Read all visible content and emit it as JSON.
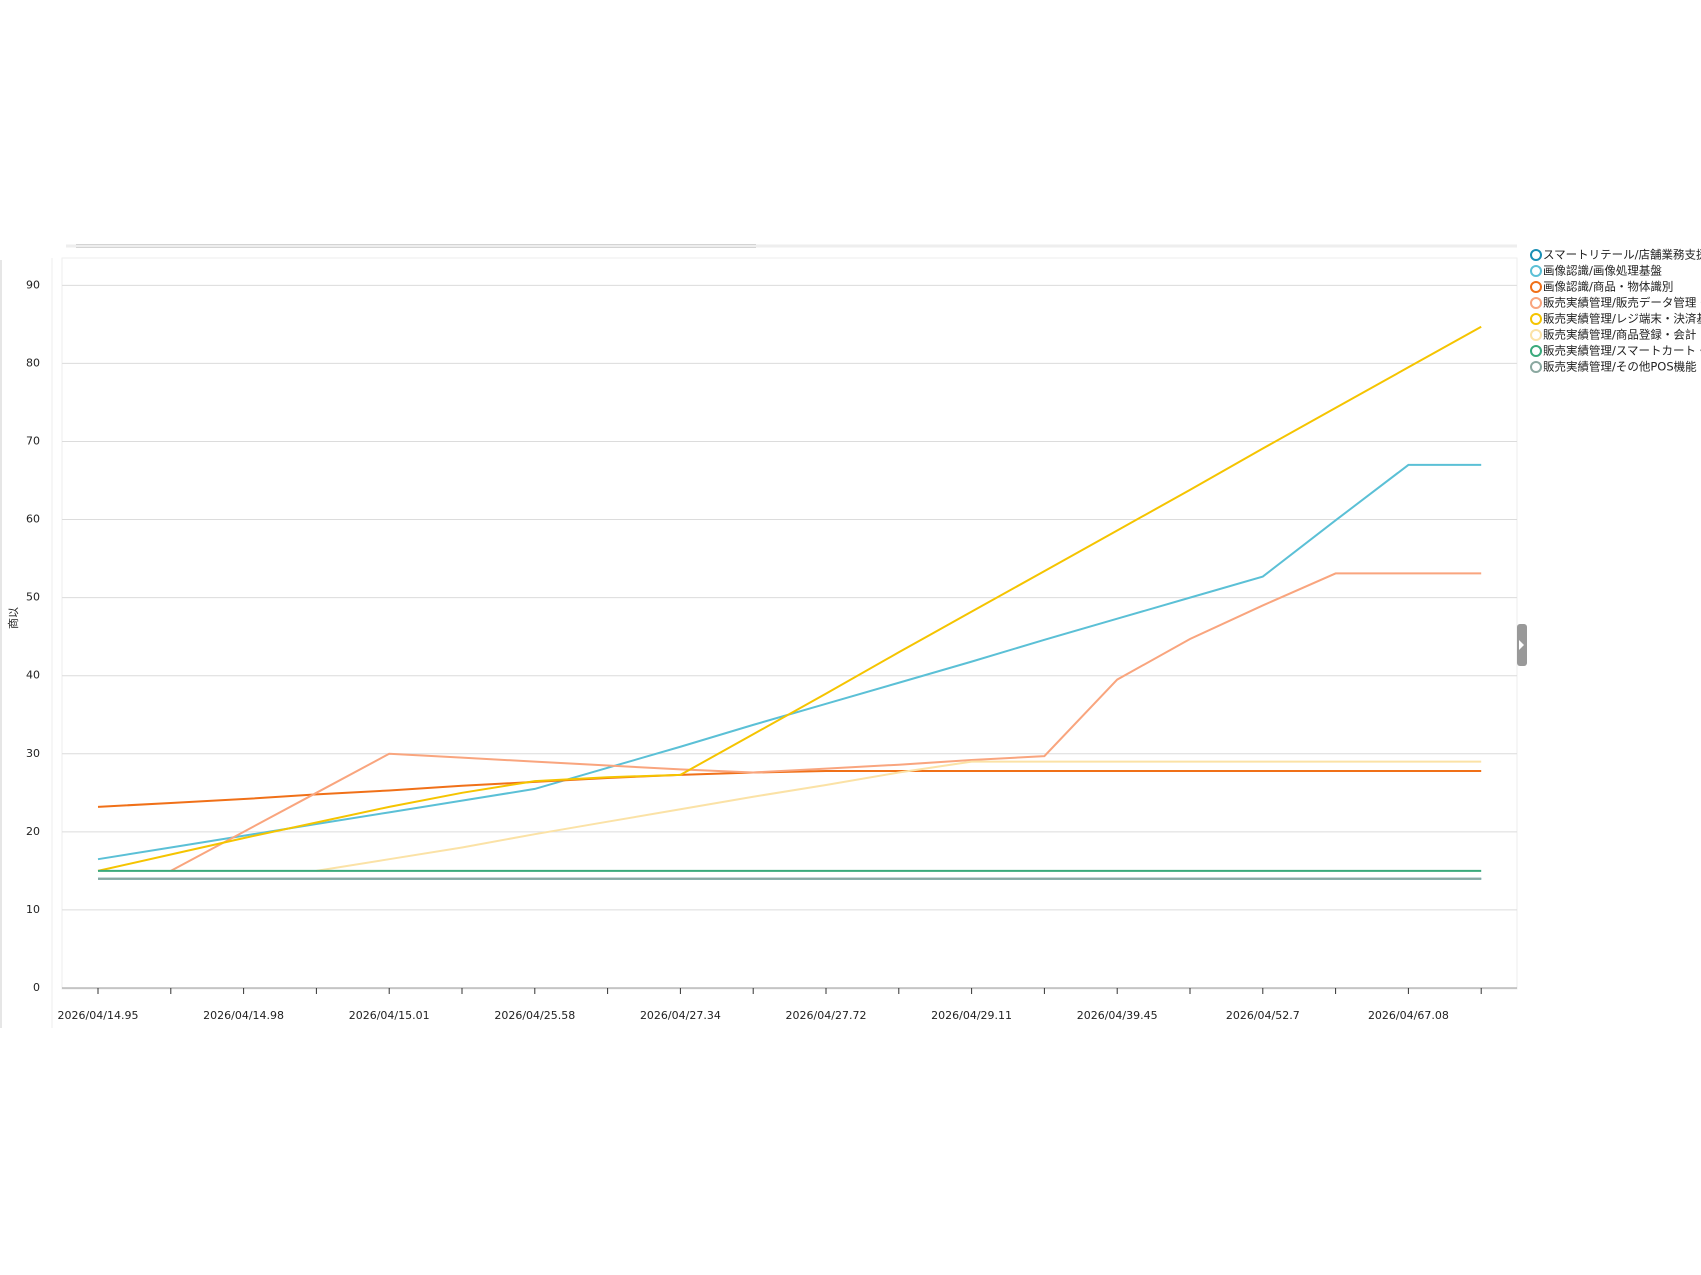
{
  "chart_data": {
    "type": "line",
    "y_label": "商以",
    "categories": [
      "2026/04/14.95",
      null,
      "2026/04/14.98",
      null,
      "2026/04/15.01",
      null,
      "2026/04/25.58",
      null,
      "2026/04/27.34",
      null,
      "2026/04/27.72",
      null,
      "2026/04/29.11",
      null,
      "2026/04/39.45",
      null,
      "2026/04/52.7",
      null,
      "2026/04/67.08",
      null
    ],
    "ylim": [
      0,
      93.5
    ],
    "yticks": [
      0,
      10,
      20,
      30,
      40,
      50,
      60,
      70,
      80,
      90
    ],
    "grid": true,
    "series": [
      {
        "name": "スマートリテール/店舗業務支援",
        "color": "#1a8fb5",
        "values": [
          14,
          14,
          14,
          14,
          14,
          14,
          14,
          14,
          14,
          14,
          14,
          14,
          14,
          14,
          14,
          14,
          14,
          14,
          14,
          14
        ]
      },
      {
        "name": "画像認識/画像処理基盤",
        "color": "#5bc0d6",
        "values": [
          16.5,
          18,
          19.5,
          21,
          22.5,
          24,
          25.5,
          28.2,
          30.9,
          33.7,
          36.4,
          39.1,
          41.8,
          44.6,
          47.3,
          50,
          52.7,
          59.9,
          67,
          67
        ]
      },
      {
        "name": "画像認識/商品・物体識別",
        "color": "#f07018",
        "values": [
          23.2,
          23.7,
          24.2,
          24.8,
          25.3,
          25.9,
          26.4,
          26.9,
          27.3,
          27.6,
          27.8,
          27.8,
          27.8,
          27.8,
          27.8,
          27.8,
          27.8,
          27.8,
          27.8,
          27.8
        ]
      },
      {
        "name": "販売実績管理/販売データ管理・",
        "color": "#f9a57e",
        "values": [
          null,
          15,
          20,
          25,
          30,
          29.5,
          29,
          28.5,
          28,
          27.6,
          28.1,
          28.6,
          29.2,
          29.7,
          39.5,
          44.7,
          49,
          53.1,
          53.1,
          53.1
        ]
      },
      {
        "name": "販売実績管理/レジ端末・決済基",
        "color": "#f5c400",
        "values": [
          15,
          17.1,
          19.2,
          21.2,
          23.2,
          25,
          26.5,
          27,
          27.3,
          32.5,
          37.7,
          43,
          48.2,
          53.4,
          58.6,
          63.8,
          69.1,
          74.3,
          79.5,
          84.7
        ]
      },
      {
        "name": "販売実績管理/商品登録・会計",
        "color": "#fbe2a6",
        "values": [
          null,
          null,
          null,
          15,
          16.5,
          18,
          19.7,
          21.3,
          22.9,
          24.5,
          26,
          27.6,
          29,
          29,
          29,
          29,
          29,
          29,
          29,
          29
        ]
      },
      {
        "name": "販売実績管理/スマートカート・カ",
        "color": "#3aaa7c",
        "values": [
          15,
          15,
          15,
          15,
          15,
          15,
          15,
          15,
          15,
          15,
          15,
          15,
          15,
          15,
          15,
          15,
          15,
          15,
          15,
          15
        ]
      },
      {
        "name": "販売実績管理/その他POS機能",
        "color": "#8aa8a0",
        "values": [
          14,
          14,
          14,
          14,
          14,
          14,
          14,
          14,
          14,
          14,
          14,
          14,
          14,
          14,
          14,
          14,
          14,
          14,
          14,
          14
        ]
      }
    ]
  }
}
